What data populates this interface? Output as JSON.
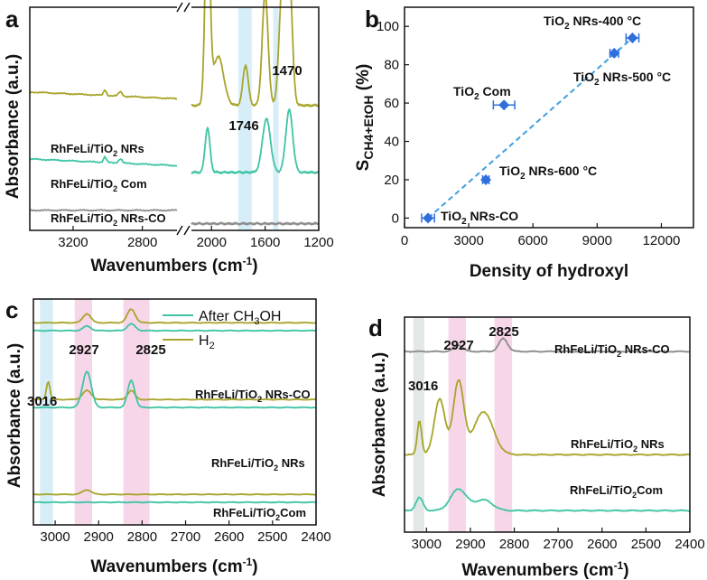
{
  "colors": {
    "olive": "#a8a42a",
    "teal": "#3fc4a4",
    "grey": "#8c8c8c",
    "blue_marker": "#2f6fdc",
    "blue_line": "#3f9fdf",
    "band_blue": "#d7eef8",
    "band_pink": "#f8d6ea",
    "band_grey": "#e3e8e6"
  },
  "chart_data": [
    {
      "panel": "a",
      "type": "line",
      "xlabel": "Wavenumbers (cm-1)",
      "ylabel": "Absorbance (a.u.)",
      "xticks": [
        "3200",
        "2800",
        "2000",
        "1600",
        "1200"
      ],
      "bands_cm": [
        [
          1800,
          1700
        ],
        [
          1540,
          1500
        ]
      ],
      "peak_labels": [
        {
          "text": "1746",
          "x": 1746
        },
        {
          "text": "1470",
          "x": 1470
        }
      ],
      "series": [
        {
          "name": "RhFeLi/TiO2 NRs",
          "color": "olive",
          "baseline": 0.58,
          "peaks": [
            [
              2030,
              0.9,
              18
            ],
            [
              1950,
              0.22,
              40
            ],
            [
              1746,
              0.18,
              20
            ],
            [
              1600,
              0.5,
              22
            ],
            [
              1470,
              0.56,
              24
            ],
            [
              1420,
              0.58,
              22
            ]
          ]
        },
        {
          "name": "RhFeLi/TiO2 Com",
          "color": "teal",
          "baseline": 0.28,
          "peaks": [
            [
              2030,
              0.2,
              18
            ],
            [
              1590,
              0.24,
              30
            ],
            [
              1420,
              0.28,
              26
            ]
          ]
        },
        {
          "name": "RhFeLi/TiO2 NRs-CO",
          "color": "grey",
          "baseline": 0.05,
          "peaks": []
        }
      ]
    },
    {
      "panel": "b",
      "type": "scatter",
      "xlabel": "Density of hydroxyl",
      "ylabel": "SCH4+EtOH (%)",
      "xlim": [
        0,
        13500
      ],
      "ylim": [
        -5,
        110
      ],
      "xticks": [
        0,
        3000,
        6000,
        9000,
        12000
      ],
      "yticks": [
        0,
        20,
        40,
        60,
        80,
        100
      ],
      "points": [
        {
          "label": "TiO2 NRs-CO",
          "x": 1100,
          "y": 0,
          "xerr": 300
        },
        {
          "label": "TiO2 NRs-600 °C",
          "x": 3800,
          "y": 20,
          "xerr": 150
        },
        {
          "label": "TiO2 Com",
          "x": 4650,
          "y": 59,
          "xerr": 500
        },
        {
          "label": "TiO2 NRs-500 °C",
          "x": 9800,
          "y": 86,
          "xerr": 200
        },
        {
          "label": "TiO2 NRs-400 °C",
          "x": 10650,
          "y": 94,
          "xerr": 300
        }
      ],
      "fit": {
        "x": [
          1100,
          10650
        ],
        "y": [
          0,
          94
        ]
      }
    },
    {
      "panel": "c",
      "type": "line",
      "xlabel": "Wavenumbers (cm-1)",
      "ylabel": "Absorbance (a.u.)",
      "xlim": [
        3050,
        2400
      ],
      "xticks": [
        3000,
        2900,
        2800,
        2700,
        2600,
        2500,
        2400
      ],
      "bands_cm": [
        [
          3035,
          3005,
          "band_blue"
        ],
        [
          2955,
          2915,
          "band_pink"
        ],
        [
          2843,
          2783,
          "band_pink"
        ]
      ],
      "peak_labels": [
        {
          "text": "2927",
          "x": 2927
        },
        {
          "text": "2825",
          "x": 2825
        },
        {
          "text": "3016",
          "x": 3016
        }
      ],
      "legend": [
        "After CH3OH",
        "H2"
      ],
      "groups": [
        {
          "name": "RhFeLi/TiO2 NRs-CO",
          "baseline": 0.86,
          "h2": [
            [
              2927,
              0.04,
              9
            ],
            [
              2825,
              0.06,
              9
            ]
          ],
          "ch3oh": [
            [
              2927,
              0.02,
              9
            ],
            [
              2825,
              0.03,
              9
            ]
          ]
        },
        {
          "name": "RhFeLi/TiO2 NRs",
          "baseline": 0.52,
          "h2": [
            [
              3016,
              0.08,
              4
            ],
            [
              2927,
              0.04,
              10
            ],
            [
              2825,
              0.04,
              8
            ]
          ],
          "ch3oh": [
            [
              2927,
              0.16,
              10
            ],
            [
              2825,
              0.12,
              8
            ]
          ]
        },
        {
          "name": "RhFeLi/TiO2Com",
          "baseline": 0.1,
          "h2": [
            [
              2927,
              0.02,
              10
            ]
          ],
          "ch3oh": []
        }
      ]
    },
    {
      "panel": "d",
      "type": "line",
      "xlabel": "Wavenumbers (cm-1)",
      "ylabel": "Absorbance (a.u.)",
      "xlim": [
        3050,
        2400
      ],
      "xticks": [
        3000,
        2900,
        2800,
        2700,
        2600,
        2500,
        2400
      ],
      "bands_cm": [
        [
          3030,
          3005,
          "band_grey"
        ],
        [
          2950,
          2910,
          "band_pink"
        ],
        [
          2845,
          2805,
          "band_pink"
        ]
      ],
      "peak_labels": [
        {
          "text": "2927",
          "x": 2927
        },
        {
          "text": "2825",
          "x": 2825
        },
        {
          "text": "3016",
          "x": 3016
        }
      ],
      "series": [
        {
          "name": "RhFeLi/TiO2 NRs-CO",
          "color": "grey",
          "baseline": 0.84,
          "peaks": [
            [
              2927,
              0.03,
              10
            ],
            [
              2825,
              0.06,
              10
            ]
          ]
        },
        {
          "name": "RhFeLi/TiO2 NRs",
          "color": "olive",
          "baseline": 0.36,
          "peaks": [
            [
              3016,
              0.16,
              5
            ],
            [
              2970,
              0.26,
              12
            ],
            [
              2927,
              0.34,
              12
            ],
            [
              2870,
              0.2,
              22
            ]
          ]
        },
        {
          "name": "RhFeLi/TiO2 Com",
          "color": "teal",
          "baseline": 0.1,
          "peaks": [
            [
              3016,
              0.06,
              8
            ],
            [
              2927,
              0.1,
              18
            ],
            [
              2870,
              0.05,
              20
            ]
          ]
        }
      ]
    }
  ],
  "labels": {
    "a": {
      "letter": "a",
      "ylabel": "Absorbance (a.u.)",
      "xlabel_pre": "Wavenumbers (cm",
      "xlabel_sup": "-1",
      "xlabel_post": ")",
      "peak1": "1746",
      "peak2": "1470",
      "s1_pre": "RhFeLi/TiO",
      "s1_sub": "2",
      "s1_post": " NRs",
      "s2_pre": "RhFeLi/TiO",
      "s2_sub": "2",
      "s2_post": " Com",
      "s3_pre": "RhFeLi/TiO",
      "s3_sub": "2",
      "s3_post": " NRs-CO"
    },
    "b": {
      "letter": "b",
      "xlabel": "Density of hydroxyl",
      "ylabel_main": "S",
      "ylabel_sub": "CH4+EtOH",
      "ylabel_post": " (%)",
      "p1_pre": "TiO",
      "p1_sub": "2",
      "p1_post": " NRs-400 °C",
      "p2_pre": "TiO",
      "p2_sub": "2",
      "p2_post": " NRs-500 °C",
      "p3_pre": "TiO",
      "p3_sub": "2",
      "p3_post": " Com",
      "p4_pre": "TiO",
      "p4_sub": "2",
      "p4_post": " NRs-600 °C",
      "p5_pre": "TiO",
      "p5_sub": "2",
      "p5_post": " NRs-CO"
    },
    "c": {
      "letter": "c",
      "ylabel": "Absorbance (a.u.)",
      "xlabel_pre": "Wavenumbers (cm",
      "xlabel_sup": "-1",
      "xlabel_post": ")",
      "leg1_pre": "After CH",
      "leg1_sub": "3",
      "leg1_post": "OH",
      "leg2_pre": "H",
      "leg2_sub": "2",
      "peak1": "2927",
      "peak2": "2825",
      "peak3": "3016",
      "g1_pre": "RhFeLi/TiO",
      "g1_sub": "2",
      "g1_post": " NRs-CO",
      "g2_pre": "RhFeLi/TiO",
      "g2_sub": "2",
      "g2_post": " NRs",
      "g3_pre": "RhFeLi/TiO",
      "g3_sub": "2",
      "g3_post": "Com"
    },
    "d": {
      "letter": "d",
      "ylabel": "Absorbance (a.u.)",
      "xlabel_pre": "Wavenumbers (cm",
      "xlabel_sup": "-1",
      "xlabel_post": ")",
      "peak1": "2927",
      "peak2": "2825",
      "peak3": "3016",
      "s1_pre": "RhFeLi/TiO",
      "s1_sub": "2",
      "s1_post": " NRs-CO",
      "s2_pre": "RhFeLi/TiO",
      "s2_sub": "2",
      "s2_post": " NRs",
      "s3_pre": "RhFeLi/TiO",
      "s3_sub": "2",
      "s3_post": "Com"
    }
  }
}
